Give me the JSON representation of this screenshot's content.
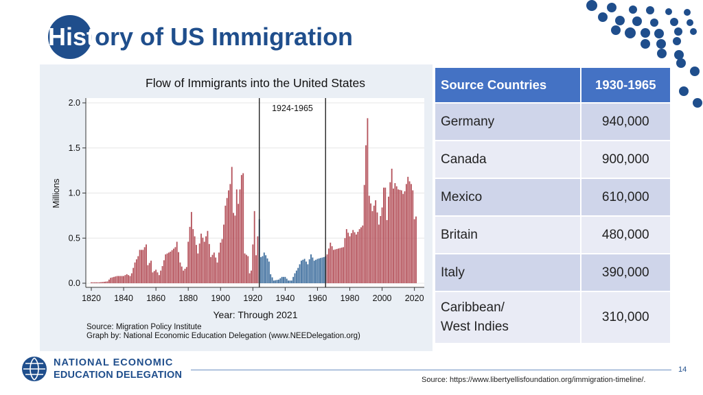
{
  "slide": {
    "title_part1": "Hist",
    "title_part2": "ory of US Immigration",
    "page_number": "14",
    "source": "Source: https://www.libertyellisfoundation.org/immigration-timeline/.",
    "logo_line1": "NATIONAL ECONOMIC",
    "logo_line2": "EDUCATION DELEGATION"
  },
  "colors": {
    "accent": "#1f4e8c",
    "bar_red": "#b5535c",
    "bar_blue": "#3f6f9e",
    "table_header": "#4472c4",
    "table_row_dark": "#cfd5ea",
    "table_row_light": "#e9ebf5"
  },
  "chart_data": {
    "type": "bar",
    "title": "Flow of Immigrants into the United States",
    "xlabel": "Year: Through 2021",
    "ylabel": "Millions",
    "xlim": [
      1820,
      2021
    ],
    "ylim": [
      0,
      2.0
    ],
    "xticks": [
      "1820",
      "1840",
      "1860",
      "1880",
      "1900",
      "1920",
      "1940",
      "1960",
      "1980",
      "2000",
      "2020"
    ],
    "yticks": [
      "0.0",
      "0.5",
      "1.0",
      "1.5",
      "2.0"
    ],
    "grid": true,
    "annotation": "1924-1965",
    "period_lines": [
      1924,
      1965
    ],
    "source_note": "Source: Migration Policy Institute",
    "graph_note": "Graph by: National Economic Education Delegation (www.NEEDelegation.org)",
    "anchors": [
      [
        1820,
        0.01
      ],
      [
        1825,
        0.01
      ],
      [
        1830,
        0.02
      ],
      [
        1832,
        0.06
      ],
      [
        1836,
        0.08
      ],
      [
        1840,
        0.08
      ],
      [
        1842,
        0.1
      ],
      [
        1844,
        0.08
      ],
      [
        1845,
        0.11
      ],
      [
        1847,
        0.23
      ],
      [
        1849,
        0.3
      ],
      [
        1850,
        0.37
      ],
      [
        1852,
        0.37
      ],
      [
        1854,
        0.43
      ],
      [
        1855,
        0.2
      ],
      [
        1857,
        0.25
      ],
      [
        1858,
        0.12
      ],
      [
        1860,
        0.15
      ],
      [
        1862,
        0.09
      ],
      [
        1864,
        0.19
      ],
      [
        1866,
        0.32
      ],
      [
        1869,
        0.35
      ],
      [
        1872,
        0.4
      ],
      [
        1873,
        0.46
      ],
      [
        1875,
        0.23
      ],
      [
        1877,
        0.14
      ],
      [
        1879,
        0.18
      ],
      [
        1880,
        0.46
      ],
      [
        1882,
        0.79
      ],
      [
        1883,
        0.6
      ],
      [
        1884,
        0.52
      ],
      [
        1886,
        0.33
      ],
      [
        1888,
        0.55
      ],
      [
        1890,
        0.46
      ],
      [
        1892,
        0.58
      ],
      [
        1894,
        0.29
      ],
      [
        1896,
        0.34
      ],
      [
        1898,
        0.23
      ],
      [
        1900,
        0.45
      ],
      [
        1901,
        0.49
      ],
      [
        1902,
        0.65
      ],
      [
        1903,
        0.86
      ],
      [
        1905,
        1.03
      ],
      [
        1906,
        1.1
      ],
      [
        1907,
        1.29
      ],
      [
        1908,
        0.78
      ],
      [
        1909,
        0.75
      ],
      [
        1910,
        1.04
      ],
      [
        1911,
        0.88
      ],
      [
        1913,
        1.2
      ],
      [
        1914,
        1.22
      ],
      [
        1915,
        0.33
      ],
      [
        1917,
        0.3
      ],
      [
        1918,
        0.11
      ],
      [
        1919,
        0.14
      ],
      [
        1920,
        0.43
      ],
      [
        1921,
        0.8
      ],
      [
        1922,
        0.31
      ],
      [
        1923,
        0.52
      ],
      [
        1924,
        0.71
      ],
      [
        1925,
        0.29
      ],
      [
        1926,
        0.3
      ],
      [
        1927,
        0.34
      ],
      [
        1928,
        0.31
      ],
      [
        1930,
        0.24
      ],
      [
        1931,
        0.1
      ],
      [
        1933,
        0.03
      ],
      [
        1936,
        0.04
      ],
      [
        1938,
        0.07
      ],
      [
        1940,
        0.07
      ],
      [
        1942,
        0.03
      ],
      [
        1944,
        0.03
      ],
      [
        1946,
        0.11
      ],
      [
        1948,
        0.17
      ],
      [
        1950,
        0.25
      ],
      [
        1952,
        0.27
      ],
      [
        1954,
        0.21
      ],
      [
        1956,
        0.32
      ],
      [
        1958,
        0.25
      ],
      [
        1960,
        0.27
      ],
      [
        1962,
        0.28
      ],
      [
        1964,
        0.29
      ],
      [
        1965,
        0.3
      ],
      [
        1966,
        0.32
      ],
      [
        1968,
        0.45
      ],
      [
        1970,
        0.37
      ],
      [
        1972,
        0.38
      ],
      [
        1974,
        0.39
      ],
      [
        1976,
        0.4
      ],
      [
        1978,
        0.6
      ],
      [
        1980,
        0.52
      ],
      [
        1982,
        0.59
      ],
      [
        1984,
        0.54
      ],
      [
        1986,
        0.6
      ],
      [
        1988,
        0.64
      ],
      [
        1989,
        1.09
      ],
      [
        1990,
        1.53
      ],
      [
        1991,
        1.83
      ],
      [
        1992,
        0.97
      ],
      [
        1994,
        0.8
      ],
      [
        1996,
        0.92
      ],
      [
        1998,
        0.65
      ],
      [
        2000,
        0.84
      ],
      [
        2001,
        1.06
      ],
      [
        2002,
        1.06
      ],
      [
        2003,
        0.7
      ],
      [
        2004,
        0.96
      ],
      [
        2005,
        1.12
      ],
      [
        2006,
        1.27
      ],
      [
        2007,
        1.05
      ],
      [
        2008,
        1.11
      ],
      [
        2010,
        1.04
      ],
      [
        2012,
        1.03
      ],
      [
        2013,
        0.99
      ],
      [
        2014,
        1.02
      ],
      [
        2016,
        1.18
      ],
      [
        2017,
        1.13
      ],
      [
        2018,
        1.1
      ],
      [
        2019,
        1.03
      ],
      [
        2020,
        0.71
      ],
      [
        2021,
        0.74
      ]
    ]
  },
  "table": {
    "headers": [
      "Source Countries",
      "1930-1965"
    ],
    "rows": [
      {
        "country": "Germany",
        "value": "940,000"
      },
      {
        "country": "Canada",
        "value": "900,000"
      },
      {
        "country": "Mexico",
        "value": "610,000"
      },
      {
        "country": "Britain",
        "value": "480,000"
      },
      {
        "country": "Italy",
        "value": "390,000"
      },
      {
        "country_line1": "Caribbean/",
        "country_line2": "West Indies",
        "value": "310,000"
      }
    ]
  }
}
